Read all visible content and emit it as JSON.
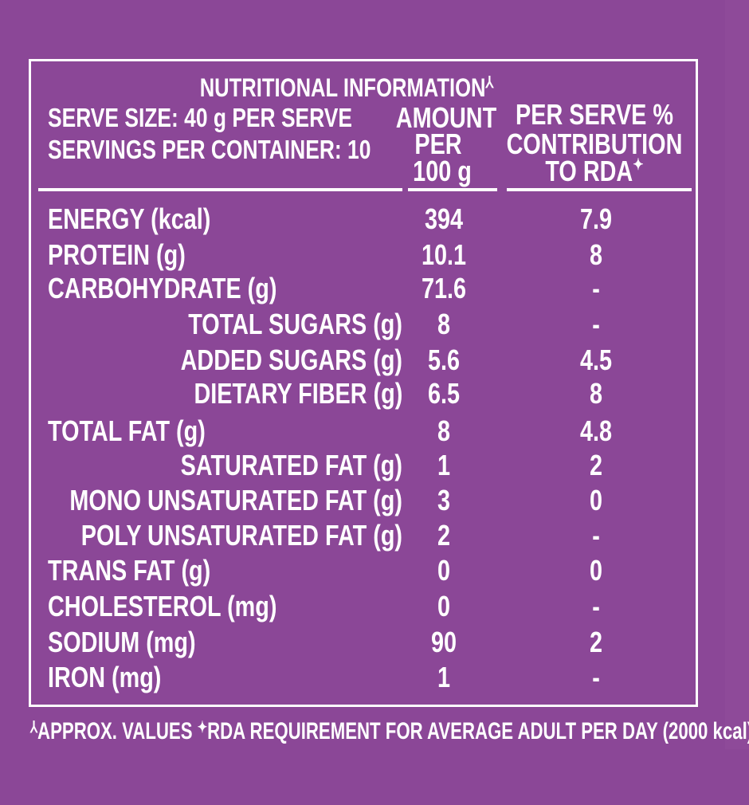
{
  "header": {
    "title": "NUTRITIONAL INFORMATION",
    "title_mark": "⅄",
    "serve_size": "SERVE SIZE: 40 g PER SERVE",
    "servings": "SERVINGS PER CONTAINER: 10",
    "col_amount": [
      "AMOUNT",
      "PER",
      "100 g"
    ],
    "col_rda": [
      "PER SERVE %",
      "CONTRIBUTION",
      "TO RDA"
    ],
    "rda_mark": "✦"
  },
  "rows": [
    {
      "label": "ENERGY (kcal)",
      "amount": "394",
      "rda": "7.9",
      "indent": false
    },
    {
      "label": "PROTEIN (g)",
      "amount": "10.1",
      "rda": "8",
      "indent": false
    },
    {
      "label": "CARBOHYDRATE (g)",
      "amount": "71.6",
      "rda": "-",
      "indent": false
    },
    {
      "label": "TOTAL SUGARS (g)",
      "amount": "8",
      "rda": "-",
      "indent": true
    },
    {
      "label": "ADDED SUGARS (g)",
      "amount": "5.6",
      "rda": "4.5",
      "indent": true
    },
    {
      "label": "DIETARY FIBER (g)",
      "amount": "6.5",
      "rda": "8",
      "indent": true
    },
    {
      "label": "TOTAL FAT  (g)",
      "amount": "8",
      "rda": "4.8",
      "indent": false
    },
    {
      "label": "SATURATED FAT (g)",
      "amount": "1",
      "rda": "2",
      "indent": true
    },
    {
      "label": "MONO UNSATURATED FAT (g)",
      "amount": "3",
      "rda": "0",
      "indent": true
    },
    {
      "label": "POLY UNSATURATED FAT  (g)",
      "amount": "2",
      "rda": "-",
      "indent": true
    },
    {
      "label": "TRANS FAT  (g)",
      "amount": "0",
      "rda": "0",
      "indent": false
    },
    {
      "label": "CHOLESTEROL  (mg)",
      "amount": "0",
      "rda": "-",
      "indent": false
    },
    {
      "label": "SODIUM  (mg)",
      "amount": "90",
      "rda": "2",
      "indent": false
    },
    {
      "label": "IRON  (mg)",
      "amount": "1",
      "rda": "-",
      "indent": false
    }
  ],
  "footer": {
    "approx_mark": "⅄",
    "approx": "APPROX. VALUES",
    "rda_mark": "✦",
    "rda_note": "RDA REQUIREMENT FOR AVERAGE ADULT PER DAY (2000 kcal)"
  },
  "colors": {
    "background": "#8b4797",
    "text": "#ffffff"
  }
}
